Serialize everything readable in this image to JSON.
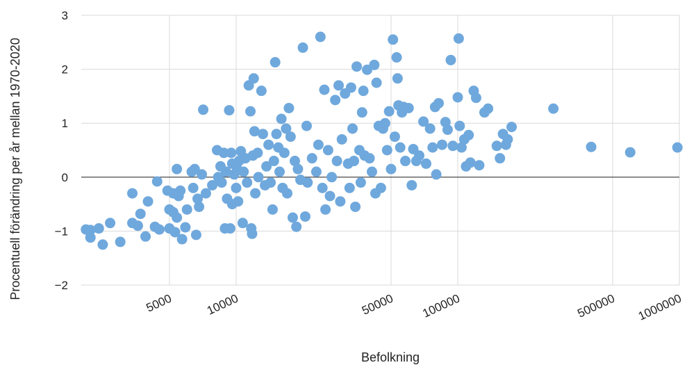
{
  "chart_data": {
    "type": "scatter",
    "title": "",
    "xlabel": "Befolkning",
    "ylabel": "Procentuell förändring per år mellan 1970-2020",
    "x_scale": "log",
    "xlim": [
      2000,
      1000000
    ],
    "ylim": [
      -2,
      3
    ],
    "x_ticks": [
      5000,
      10000,
      50000,
      100000,
      500000,
      1000000
    ],
    "x_tick_labels": [
      "5000",
      "10000",
      "50000",
      "100000",
      "500000",
      "1000000"
    ],
    "y_ticks": [
      -2,
      -1,
      0,
      1,
      2,
      3
    ],
    "y_tick_labels": [
      "−2",
      "−1",
      "0",
      "1",
      "2",
      "3"
    ],
    "grid": true,
    "legend": "none",
    "colors": {
      "point": "#6fa8dc",
      "grid": "#d9d9d9",
      "zero_line": "#333333"
    },
    "series": [
      {
        "points": [
          [
            2100,
            -0.97
          ],
          [
            2200,
            -1.12
          ],
          [
            2200,
            -0.98
          ],
          [
            2400,
            -0.95
          ],
          [
            2500,
            -1.25
          ],
          [
            2700,
            -0.85
          ],
          [
            3000,
            -1.2
          ],
          [
            3400,
            -0.3
          ],
          [
            3400,
            -0.85
          ],
          [
            3600,
            -0.9
          ],
          [
            3700,
            -0.68
          ],
          [
            3900,
            -1.1
          ],
          [
            4000,
            -0.45
          ],
          [
            4300,
            -0.92
          ],
          [
            4400,
            -0.08
          ],
          [
            4500,
            -0.97
          ],
          [
            4900,
            -0.25
          ],
          [
            5000,
            -0.6
          ],
          [
            5000,
            -0.95
          ],
          [
            5200,
            -0.3
          ],
          [
            5200,
            -0.65
          ],
          [
            5300,
            -1.02
          ],
          [
            5400,
            0.15
          ],
          [
            5400,
            -0.75
          ],
          [
            5500,
            -0.35
          ],
          [
            5600,
            -0.25
          ],
          [
            5700,
            -1.15
          ],
          [
            5900,
            -0.93
          ],
          [
            6000,
            -0.6
          ],
          [
            6300,
            0.1
          ],
          [
            6400,
            -0.2
          ],
          [
            6500,
            0.15
          ],
          [
            6600,
            -1.07
          ],
          [
            6700,
            -0.4
          ],
          [
            6800,
            -0.55
          ],
          [
            7000,
            0.05
          ],
          [
            7100,
            1.25
          ],
          [
            7300,
            -0.3
          ],
          [
            7800,
            -0.15
          ],
          [
            8200,
            0.5
          ],
          [
            8300,
            0.0
          ],
          [
            8500,
            0.2
          ],
          [
            8600,
            -0.1
          ],
          [
            8800,
            0.45
          ],
          [
            8900,
            -0.95
          ],
          [
            9000,
            0.1
          ],
          [
            9100,
            -0.4
          ],
          [
            9300,
            1.24
          ],
          [
            9400,
            -0.95
          ],
          [
            9500,
            0.45
          ],
          [
            9600,
            0.25
          ],
          [
            9600,
            -0.5
          ],
          [
            9800,
            0.05
          ],
          [
            10000,
            -0.2
          ],
          [
            10100,
            0.15
          ],
          [
            10200,
            -0.45
          ],
          [
            10300,
            0.3
          ],
          [
            10500,
            0.48
          ],
          [
            10700,
            -0.85
          ],
          [
            10800,
            0.1
          ],
          [
            11000,
            0.35
          ],
          [
            11200,
            -0.1
          ],
          [
            11400,
            1.7
          ],
          [
            11600,
            1.22
          ],
          [
            11700,
            -0.95
          ],
          [
            11800,
            -1.05
          ],
          [
            11900,
            0.4
          ],
          [
            12000,
            1.83
          ],
          [
            12100,
            0.85
          ],
          [
            12200,
            -0.3
          ],
          [
            12500,
            0.45
          ],
          [
            12600,
            0.0
          ],
          [
            13000,
            1.6
          ],
          [
            13200,
            0.8
          ],
          [
            13500,
            -0.15
          ],
          [
            13700,
            0.2
          ],
          [
            14000,
            0.6
          ],
          [
            14300,
            -0.1
          ],
          [
            14600,
            -0.6
          ],
          [
            14800,
            0.3
          ],
          [
            15000,
            2.13
          ],
          [
            15200,
            0.8
          ],
          [
            15500,
            0.55
          ],
          [
            15700,
            0.1
          ],
          [
            16000,
            1.08
          ],
          [
            16200,
            -0.2
          ],
          [
            16500,
            0.45
          ],
          [
            16800,
            0.9
          ],
          [
            17000,
            -0.3
          ],
          [
            17300,
            1.28
          ],
          [
            17600,
            0.75
          ],
          [
            18000,
            -0.75
          ],
          [
            18400,
            0.3
          ],
          [
            18700,
            -0.92
          ],
          [
            19000,
            0.15
          ],
          [
            19500,
            -0.05
          ],
          [
            20000,
            2.4
          ],
          [
            20500,
            -0.73
          ],
          [
            20800,
            0.95
          ],
          [
            21000,
            -0.1
          ],
          [
            22000,
            0.35
          ],
          [
            23000,
            0.1
          ],
          [
            23500,
            0.6
          ],
          [
            24000,
            2.6
          ],
          [
            24500,
            -0.2
          ],
          [
            25000,
            1.62
          ],
          [
            25300,
            -0.6
          ],
          [
            26000,
            0.5
          ],
          [
            26500,
            -0.35
          ],
          [
            27000,
            0.0
          ],
          [
            28000,
            1.43
          ],
          [
            28500,
            0.3
          ],
          [
            29000,
            1.7
          ],
          [
            29500,
            -0.45
          ],
          [
            30000,
            0.7
          ],
          [
            31000,
            1.55
          ],
          [
            32000,
            0.25
          ],
          [
            32500,
            -0.2
          ],
          [
            33000,
            1.66
          ],
          [
            33500,
            0.9
          ],
          [
            34000,
            0.3
          ],
          [
            34500,
            -0.55
          ],
          [
            35000,
            2.05
          ],
          [
            36000,
            0.5
          ],
          [
            36500,
            -0.1
          ],
          [
            37000,
            1.2
          ],
          [
            37500,
            1.6
          ],
          [
            38000,
            0.4
          ],
          [
            39000,
            1.99
          ],
          [
            40000,
            0.35
          ],
          [
            41000,
            0.1
          ],
          [
            42000,
            2.08
          ],
          [
            42500,
            -0.3
          ],
          [
            43000,
            1.75
          ],
          [
            44000,
            0.95
          ],
          [
            45000,
            -0.2
          ],
          [
            46000,
            0.9
          ],
          [
            47000,
            1.0
          ],
          [
            48000,
            0.5
          ],
          [
            49000,
            1.22
          ],
          [
            50000,
            0.15
          ],
          [
            51000,
            2.55
          ],
          [
            52000,
            0.75
          ],
          [
            53000,
            2.22
          ],
          [
            53500,
            1.83
          ],
          [
            54000,
            1.33
          ],
          [
            55000,
            0.55
          ],
          [
            56000,
            1.2
          ],
          [
            57000,
            1.3
          ],
          [
            58000,
            0.3
          ],
          [
            60000,
            1.28
          ],
          [
            62000,
            -0.15
          ],
          [
            63000,
            0.52
          ],
          [
            65000,
            0.3
          ],
          [
            67000,
            0.4
          ],
          [
            70000,
            1.03
          ],
          [
            72000,
            0.25
          ],
          [
            75000,
            0.9
          ],
          [
            77000,
            0.55
          ],
          [
            79000,
            1.3
          ],
          [
            80000,
            0.05
          ],
          [
            82000,
            1.37
          ],
          [
            85000,
            0.6
          ],
          [
            88000,
            1.02
          ],
          [
            90000,
            0.88
          ],
          [
            93000,
            2.17
          ],
          [
            95000,
            0.58
          ],
          [
            100000,
            1.48
          ],
          [
            101000,
            2.57
          ],
          [
            102000,
            0.95
          ],
          [
            104000,
            0.55
          ],
          [
            107000,
            0.7
          ],
          [
            109000,
            0.2
          ],
          [
            112000,
            0.78
          ],
          [
            114000,
            0.27
          ],
          [
            118000,
            1.6
          ],
          [
            121000,
            1.47
          ],
          [
            125000,
            0.22
          ],
          [
            132000,
            1.2
          ],
          [
            137000,
            1.27
          ],
          [
            150000,
            0.58
          ],
          [
            155000,
            0.35
          ],
          [
            160000,
            0.8
          ],
          [
            165000,
            0.6
          ],
          [
            168000,
            0.7
          ],
          [
            175000,
            0.93
          ],
          [
            270000,
            1.27
          ],
          [
            400000,
            0.56
          ],
          [
            600000,
            0.46
          ],
          [
            980000,
            0.55
          ]
        ]
      }
    ]
  }
}
